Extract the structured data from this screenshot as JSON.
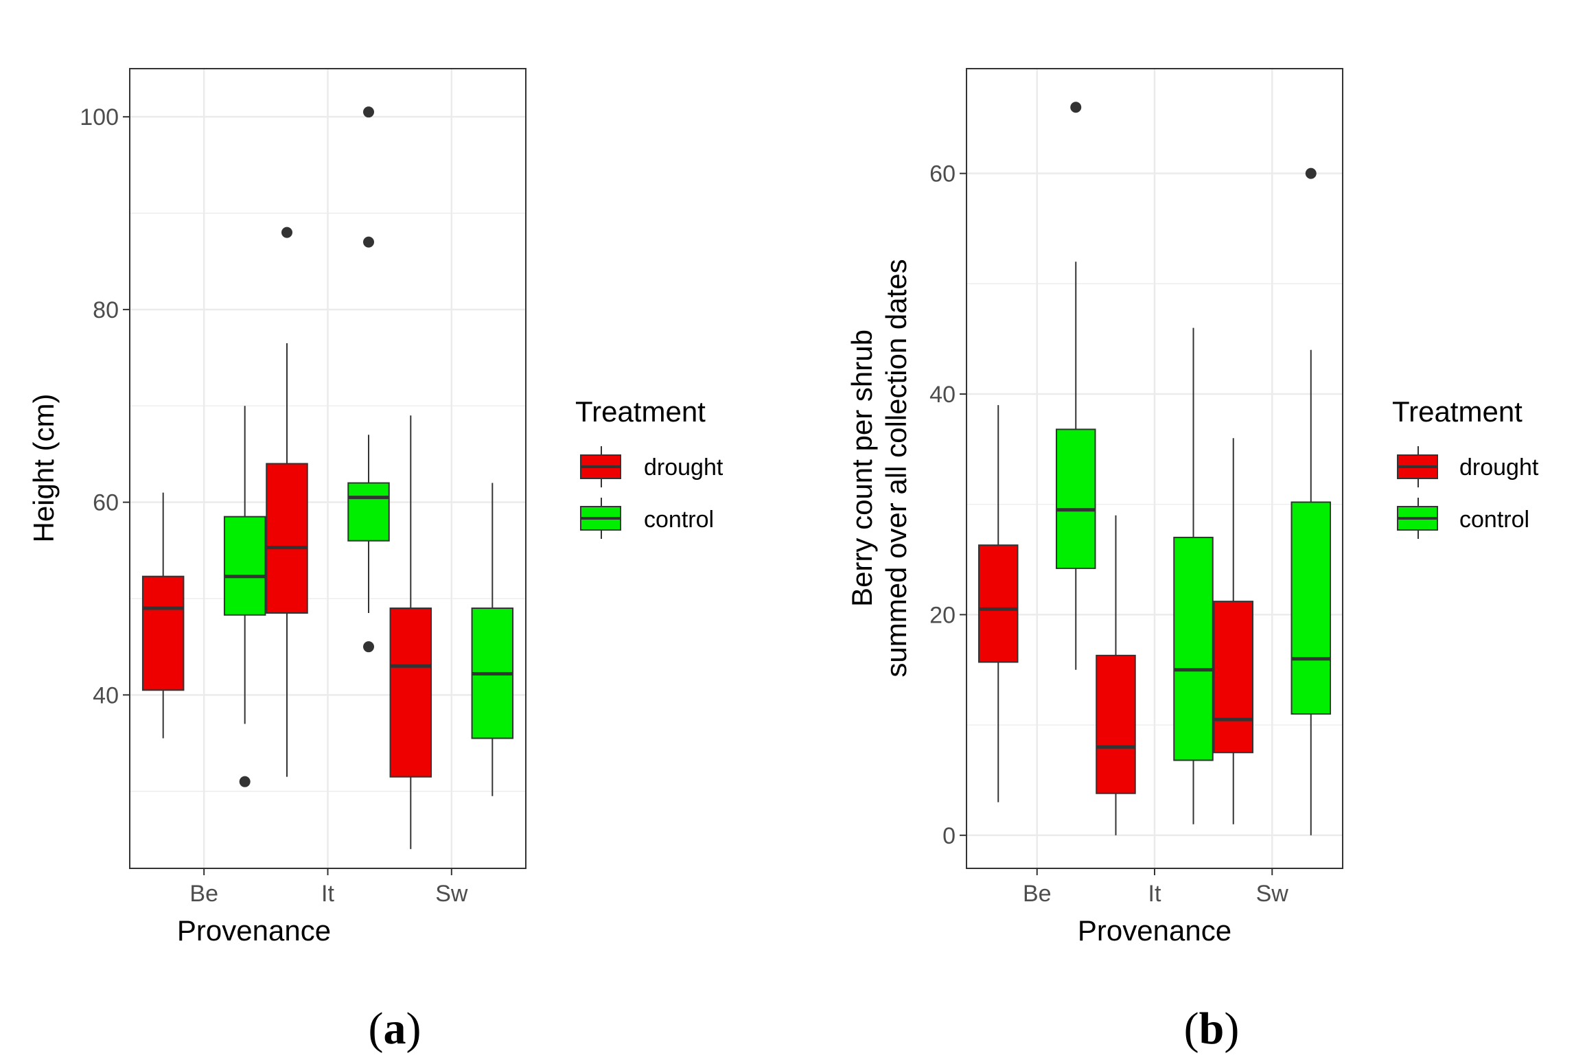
{
  "colors": {
    "drought": "#ee0000",
    "control": "#00ee00",
    "outline": "#333333",
    "grid": "#ebebeb"
  },
  "chart_data": [
    {
      "type": "boxplot",
      "panel_label": {
        "open": "(",
        "letter": "a",
        "close": ")"
      },
      "ylabel": "Height (cm)",
      "xlabel": "Provenance",
      "categories": [
        "Be",
        "It",
        "Sw"
      ],
      "ylim": [
        22,
        105
      ],
      "yticks": [
        40,
        60,
        80,
        100
      ],
      "legend": {
        "title": "Treatment",
        "position": "right"
      },
      "series": [
        {
          "name": "drought",
          "color": "#ee0000",
          "boxes": [
            {
              "min": 35.5,
              "q1": 40.5,
              "median": 49.0,
              "q3": 52.3,
              "max": 61.0,
              "outliers": []
            },
            {
              "min": 31.5,
              "q1": 48.5,
              "median": 55.3,
              "q3": 64.0,
              "max": 76.5,
              "outliers": [
                88.0
              ]
            },
            {
              "min": 24.0,
              "q1": 31.5,
              "median": 43.0,
              "q3": 49.0,
              "max": 69.0,
              "outliers": []
            }
          ]
        },
        {
          "name": "control",
          "color": "#00ee00",
          "boxes": [
            {
              "min": 37.0,
              "q1": 48.3,
              "median": 52.3,
              "q3": 58.5,
              "max": 70.0,
              "outliers": [
                31.0
              ]
            },
            {
              "min": 48.5,
              "q1": 56.0,
              "median": 60.5,
              "q3": 62.0,
              "max": 67.0,
              "outliers": [
                100.5,
                87.0,
                45.0
              ]
            },
            {
              "min": 29.5,
              "q1": 35.5,
              "median": 42.2,
              "q3": 49.0,
              "max": 62.0,
              "outliers": []
            }
          ]
        }
      ]
    },
    {
      "type": "boxplot",
      "panel_label": {
        "open": "(",
        "letter": "b",
        "close": ")"
      },
      "ylabel": "Berry count per shrub",
      "ylabel2": "summed over all collection dates",
      "xlabel": "Provenance",
      "categories": [
        "Be",
        "It",
        "Sw"
      ],
      "ylim": [
        -3,
        69.5
      ],
      "yticks": [
        0,
        20,
        40,
        60
      ],
      "legend": {
        "title": "Treatment",
        "position": "right"
      },
      "series": [
        {
          "name": "drought",
          "color": "#ee0000",
          "boxes": [
            {
              "min": 3.0,
              "q1": 15.7,
              "median": 20.5,
              "q3": 26.3,
              "max": 39.0,
              "outliers": []
            },
            {
              "min": 0.0,
              "q1": 3.8,
              "median": 8.0,
              "q3": 16.3,
              "max": 29.0,
              "outliers": []
            },
            {
              "min": 1.0,
              "q1": 7.5,
              "median": 10.5,
              "q3": 21.2,
              "max": 36.0,
              "outliers": []
            }
          ]
        },
        {
          "name": "control",
          "color": "#00ee00",
          "boxes": [
            {
              "min": 15.0,
              "q1": 24.2,
              "median": 29.5,
              "q3": 36.8,
              "max": 52.0,
              "outliers": [
                66.0
              ]
            },
            {
              "min": 1.0,
              "q1": 6.8,
              "median": 15.0,
              "q3": 27.0,
              "max": 46.0,
              "outliers": []
            },
            {
              "min": 0.0,
              "q1": 11.0,
              "median": 16.0,
              "q3": 30.2,
              "max": 44.0,
              "outliers": [
                60.0
              ]
            }
          ]
        }
      ]
    }
  ]
}
